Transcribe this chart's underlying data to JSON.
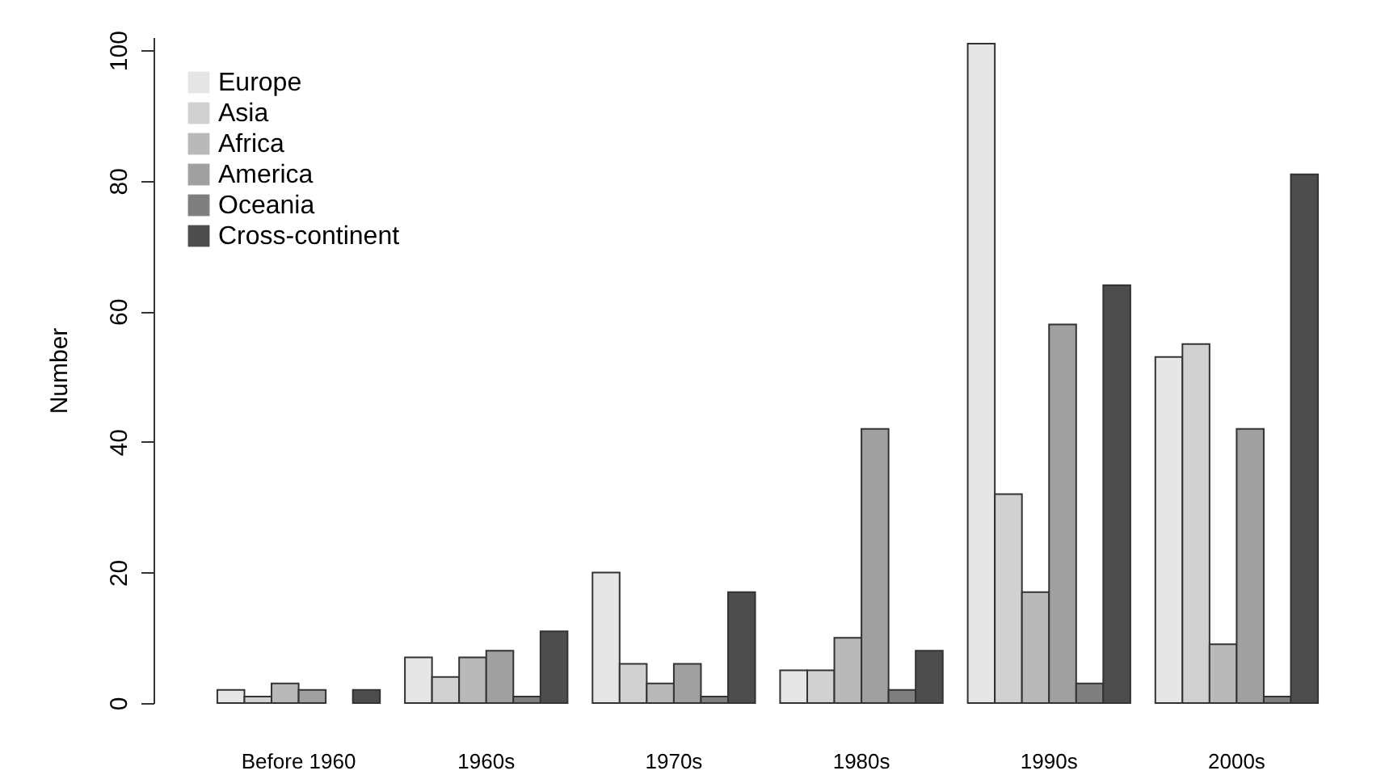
{
  "chart_data": {
    "type": "bar",
    "ylabel": "Number",
    "categories": [
      "Before 1960",
      "1960s",
      "1970s",
      "1980s",
      "1990s",
      "2000s"
    ],
    "series": [
      {
        "name": "Europe",
        "color": "#e6e6e6",
        "values": [
          2,
          7,
          20,
          5,
          101,
          53
        ]
      },
      {
        "name": "Asia",
        "color": "#d1d1d1",
        "values": [
          1,
          4,
          6,
          5,
          32,
          55
        ]
      },
      {
        "name": "Africa",
        "color": "#b9b9b9",
        "values": [
          3,
          7,
          3,
          10,
          17,
          9
        ]
      },
      {
        "name": "America",
        "color": "#a0a0a0",
        "values": [
          2,
          8,
          6,
          42,
          58,
          42
        ]
      },
      {
        "name": "Oceania",
        "color": "#7f7f7f",
        "values": [
          0,
          1,
          1,
          2,
          3,
          1
        ]
      },
      {
        "name": "Cross-continent",
        "color": "#4d4d4d",
        "values": [
          2,
          11,
          17,
          8,
          64,
          81
        ]
      }
    ],
    "ylim": [
      0,
      102
    ],
    "yticks": [
      0,
      20,
      40,
      60,
      80,
      100
    ],
    "grid": false,
    "legend": "top left"
  }
}
